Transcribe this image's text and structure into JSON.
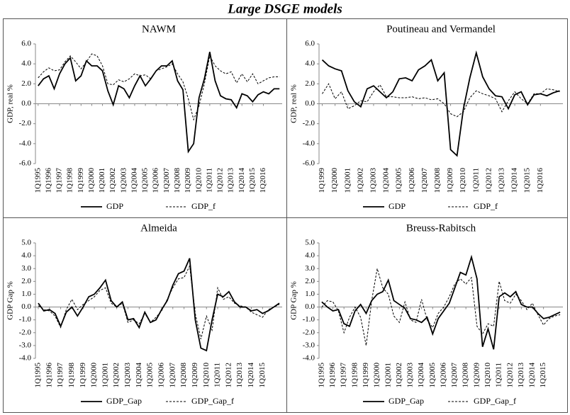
{
  "title": "Large DSGE models",
  "chart_data": [
    {
      "type": "line",
      "title": "NAWM",
      "ylabel": "GDP, real %",
      "categories": [
        "1Q1995",
        null,
        "1Q1996",
        null,
        "1Q1997",
        null,
        "1Q1998",
        null,
        "1Q1999",
        null,
        "1Q2000",
        null,
        "1Q2001",
        null,
        "1Q2002",
        null,
        "1Q2003",
        null,
        "1Q2004",
        null,
        "1Q2005",
        null,
        "1Q2006",
        null,
        "1Q2007",
        null,
        "1Q2008",
        null,
        "1Q2009",
        null,
        "1Q2010",
        null,
        "1Q2011",
        null,
        "1Q2012",
        null,
        "1Q2013",
        null,
        "1Q2014",
        null,
        "1Q2015",
        null,
        "1Q2016",
        null,
        null,
        null
      ],
      "series": [
        {
          "name": "GDP",
          "color": "#000000",
          "style": "solid",
          "values": [
            1.8,
            2.5,
            2.8,
            1.5,
            3.0,
            4.0,
            4.6,
            2.3,
            2.8,
            4.3,
            3.8,
            3.8,
            3.3,
            1.3,
            -0.1,
            1.8,
            1.5,
            0.6,
            1.8,
            2.8,
            1.8,
            2.5,
            3.3,
            3.8,
            3.8,
            4.3,
            2.3,
            1.4,
            -4.8,
            -4.0,
            0.6,
            2.5,
            5.2,
            2.3,
            0.8,
            0.5,
            0.4,
            -0.4,
            1.0,
            0.8,
            0.2,
            0.9,
            1.2,
            1.0,
            1.5,
            1.5
          ]
        },
        {
          "name": "GDP_f",
          "color": "#000000",
          "style": "dashed",
          "values": [
            2.6,
            3.2,
            3.6,
            3.3,
            3.4,
            4.2,
            4.8,
            4.2,
            3.5,
            4.2,
            5.0,
            4.8,
            3.8,
            2.0,
            1.9,
            2.4,
            2.2,
            2.5,
            3.0,
            2.8,
            2.9,
            2.5,
            3.3,
            3.5,
            3.7,
            4.0,
            3.0,
            2.2,
            0.5,
            -1.6,
            -0.2,
            2.0,
            4.8,
            3.8,
            3.3,
            3.0,
            3.2,
            2.1,
            3.0,
            2.2,
            3.0,
            2.0,
            2.3,
            2.6,
            2.7,
            2.7
          ]
        }
      ],
      "ylim": [
        -6,
        6
      ],
      "yticks": [
        {
          "value": -6,
          "label": "-6.0"
        },
        {
          "value": -4,
          "label": "-4.0"
        },
        {
          "value": -2,
          "label": "-2.0"
        },
        {
          "value": 0,
          "label": "0.0"
        },
        {
          "value": 2,
          "label": "2.0"
        },
        {
          "value": 4,
          "label": "4.0"
        },
        {
          "value": 6,
          "label": "6.0"
        }
      ],
      "legend": "bottom"
    },
    {
      "type": "line",
      "title": "Poutineau and Vermandel",
      "ylabel": "GDP, real %",
      "categories": [
        "1Q1999",
        null,
        "1Q2000",
        null,
        "1Q2001",
        null,
        "1Q2002",
        null,
        "1Q2003",
        null,
        "1Q2004",
        null,
        "1Q2005",
        null,
        "1Q2006",
        null,
        "1Q2007",
        null,
        "1Q2008",
        null,
        "1Q2009",
        null,
        "1Q2010",
        null,
        "1Q2011",
        null,
        "1Q2012",
        null,
        "1Q2013",
        null,
        "1Q2014",
        null,
        "1Q2015",
        null,
        "1Q2016",
        null,
        null,
        null
      ],
      "series": [
        {
          "name": "GDP",
          "color": "#000000",
          "style": "solid",
          "values": [
            4.4,
            3.8,
            3.5,
            3.3,
            1.3,
            0.2,
            -0.3,
            1.5,
            1.8,
            1.2,
            0.6,
            1.2,
            2.5,
            2.6,
            2.3,
            3.4,
            3.8,
            4.4,
            2.3,
            3.1,
            -4.6,
            -5.2,
            -0.5,
            2.6,
            5.1,
            2.7,
            1.5,
            0.8,
            0.7,
            -0.5,
            0.9,
            1.2,
            -0.1,
            0.9,
            1.0,
            0.8,
            1.1,
            1.3
          ]
        },
        {
          "name": "GDP_f",
          "color": "#000000",
          "style": "dashed",
          "values": [
            1.0,
            2.0,
            0.5,
            1.2,
            -0.5,
            -0.2,
            0.3,
            0.2,
            1.2,
            1.9,
            0.7,
            0.7,
            0.6,
            0.6,
            0.7,
            0.5,
            0.6,
            0.4,
            0.5,
            0.0,
            -1.0,
            -1.3,
            -0.8,
            0.6,
            1.3,
            1.0,
            0.8,
            0.5,
            -0.8,
            0.3,
            1.2,
            0.5,
            0.0,
            1.0,
            1.0,
            1.5,
            1.4,
            1.2
          ]
        }
      ],
      "ylim": [
        -6,
        6
      ],
      "yticks": [
        {
          "value": -6,
          "label": "-6.0"
        },
        {
          "value": -4,
          "label": "-4.0"
        },
        {
          "value": -2,
          "label": "-2.0"
        },
        {
          "value": 0,
          "label": "0.0"
        },
        {
          "value": 2,
          "label": "2.0"
        },
        {
          "value": 4,
          "label": "4.0"
        },
        {
          "value": 6,
          "label": "6.0"
        }
      ],
      "legend": "bottom"
    },
    {
      "type": "line",
      "title": "Almeida",
      "ylabel": "GDP Gap %",
      "categories": [
        "1Q1995",
        null,
        "1Q1996",
        null,
        "1Q1997",
        null,
        "1Q1998",
        null,
        "1Q1999",
        null,
        "1Q2000",
        null,
        "1Q2001",
        null,
        "1Q2002",
        null,
        "1Q2003",
        null,
        "1Q2004",
        null,
        "1Q2005",
        null,
        "1Q2006",
        null,
        "1Q2007",
        null,
        "1Q2008",
        null,
        "1Q2009",
        null,
        "1Q2010",
        null,
        "1Q2011",
        null,
        "1Q2012",
        null,
        "1Q2013",
        null,
        "1Q2014",
        null,
        "1Q2015",
        null,
        null,
        null
      ],
      "series": [
        {
          "name": "GDP_Gap",
          "color": "#000000",
          "style": "solid",
          "values": [
            0.3,
            -0.3,
            -0.2,
            -0.5,
            -1.5,
            -0.4,
            0.0,
            -0.7,
            0.0,
            0.8,
            1.0,
            1.5,
            2.1,
            0.5,
            0.0,
            0.4,
            -1.0,
            -0.9,
            -1.6,
            -0.4,
            -1.2,
            -1.0,
            -0.2,
            0.5,
            1.7,
            2.6,
            2.8,
            3.8,
            -1.0,
            -3.2,
            -3.4,
            -1.0,
            1.0,
            0.8,
            1.2,
            0.4,
            0.0,
            0.0,
            -0.3,
            -0.2,
            -0.5,
            -0.3,
            0.0,
            0.3
          ]
        },
        {
          "name": "GDP_Gap_f",
          "color": "#000000",
          "style": "dashed",
          "values": [
            0.1,
            -0.2,
            -0.3,
            -0.7,
            -1.6,
            -0.2,
            0.6,
            -0.2,
            0.2,
            0.5,
            0.8,
            1.3,
            1.5,
            0.3,
            0.0,
            0.3,
            -1.2,
            -1.0,
            -1.3,
            -0.5,
            -1.2,
            -0.8,
            -0.3,
            0.6,
            1.5,
            2.2,
            2.3,
            3.2,
            -0.5,
            -2.5,
            -0.7,
            -1.8,
            1.5,
            0.6,
            0.8,
            0.3,
            0.1,
            0.0,
            -0.4,
            -0.6,
            -0.8,
            -0.2,
            0.0,
            0.2
          ]
        }
      ],
      "ylim": [
        -4,
        5
      ],
      "yticks": [
        {
          "value": -4,
          "label": "-4.0"
        },
        {
          "value": -3,
          "label": "-3.0"
        },
        {
          "value": -2,
          "label": "-2.0"
        },
        {
          "value": -1,
          "label": "-1.0"
        },
        {
          "value": 0,
          "label": "0.0"
        },
        {
          "value": 1,
          "label": "1.0"
        },
        {
          "value": 2,
          "label": "2.0"
        },
        {
          "value": 3,
          "label": "3.0"
        },
        {
          "value": 4,
          "label": "4.0"
        },
        {
          "value": 5,
          "label": "5.0"
        }
      ],
      "legend": "bottom"
    },
    {
      "type": "line",
      "title": "Breuss-Rabitsch",
      "ylabel": "GDP Gap %",
      "categories": [
        "1Q1995",
        null,
        "1Q1996",
        null,
        "1Q1997",
        null,
        "1Q1998",
        null,
        "1Q1999",
        null,
        "1Q2000",
        null,
        "1Q2001",
        null,
        "1Q2002",
        null,
        "1Q2003",
        null,
        "1Q2004",
        null,
        "1Q2005",
        null,
        "1Q2006",
        null,
        "1Q2007",
        null,
        "1Q2008",
        null,
        "1Q2009",
        null,
        "1Q2010",
        null,
        "1Q2011",
        null,
        "1Q2012",
        null,
        "1Q2013",
        null,
        "1Q2014",
        null,
        "1Q2015",
        null,
        null,
        null
      ],
      "series": [
        {
          "name": "GDP_Gap",
          "color": "#000000",
          "style": "solid",
          "values": [
            0.4,
            0.0,
            -0.3,
            -0.2,
            -1.3,
            -1.5,
            -0.3,
            0.2,
            -0.5,
            0.5,
            1.0,
            1.2,
            2.1,
            0.5,
            0.2,
            -0.1,
            -0.9,
            -1.0,
            -1.2,
            -0.8,
            -2.1,
            -0.9,
            -0.3,
            0.3,
            1.5,
            2.7,
            2.5,
            3.9,
            2.2,
            -3.1,
            -1.7,
            -3.3,
            0.8,
            1.1,
            0.8,
            1.2,
            0.2,
            0.0,
            0.0,
            -0.5,
            -0.9,
            -0.8,
            -0.6,
            -0.4
          ]
        },
        {
          "name": "GDP_Gap_f",
          "color": "#000000",
          "style": "dashed",
          "values": [
            0.0,
            0.5,
            0.4,
            -0.3,
            -2.0,
            -0.8,
            0.0,
            -0.8,
            -3.0,
            0.5,
            3.0,
            1.5,
            1.0,
            -0.7,
            -1.2,
            0.4,
            -1.0,
            -1.2,
            0.6,
            -1.0,
            -1.6,
            -0.5,
            0.0,
            0.8,
            1.8,
            2.2,
            1.8,
            2.3,
            -1.5,
            -2.1,
            -1.3,
            -1.5,
            2.0,
            0.5,
            0.3,
            1.0,
            0.5,
            -0.2,
            0.3,
            -0.6,
            -1.4,
            -0.9,
            -0.7,
            -0.6
          ]
        }
      ],
      "ylim": [
        -4,
        5
      ],
      "yticks": [
        {
          "value": -4,
          "label": "-4.0"
        },
        {
          "value": -3,
          "label": "-3.0"
        },
        {
          "value": -2,
          "label": "-2.0"
        },
        {
          "value": -1,
          "label": "-1.0"
        },
        {
          "value": 0,
          "label": "0.0"
        },
        {
          "value": 1,
          "label": "1.0"
        },
        {
          "value": 2,
          "label": "2.0"
        },
        {
          "value": 3,
          "label": "3.0"
        },
        {
          "value": 4,
          "label": "4.0"
        },
        {
          "value": 5,
          "label": "5.0"
        }
      ],
      "legend": "bottom"
    }
  ]
}
